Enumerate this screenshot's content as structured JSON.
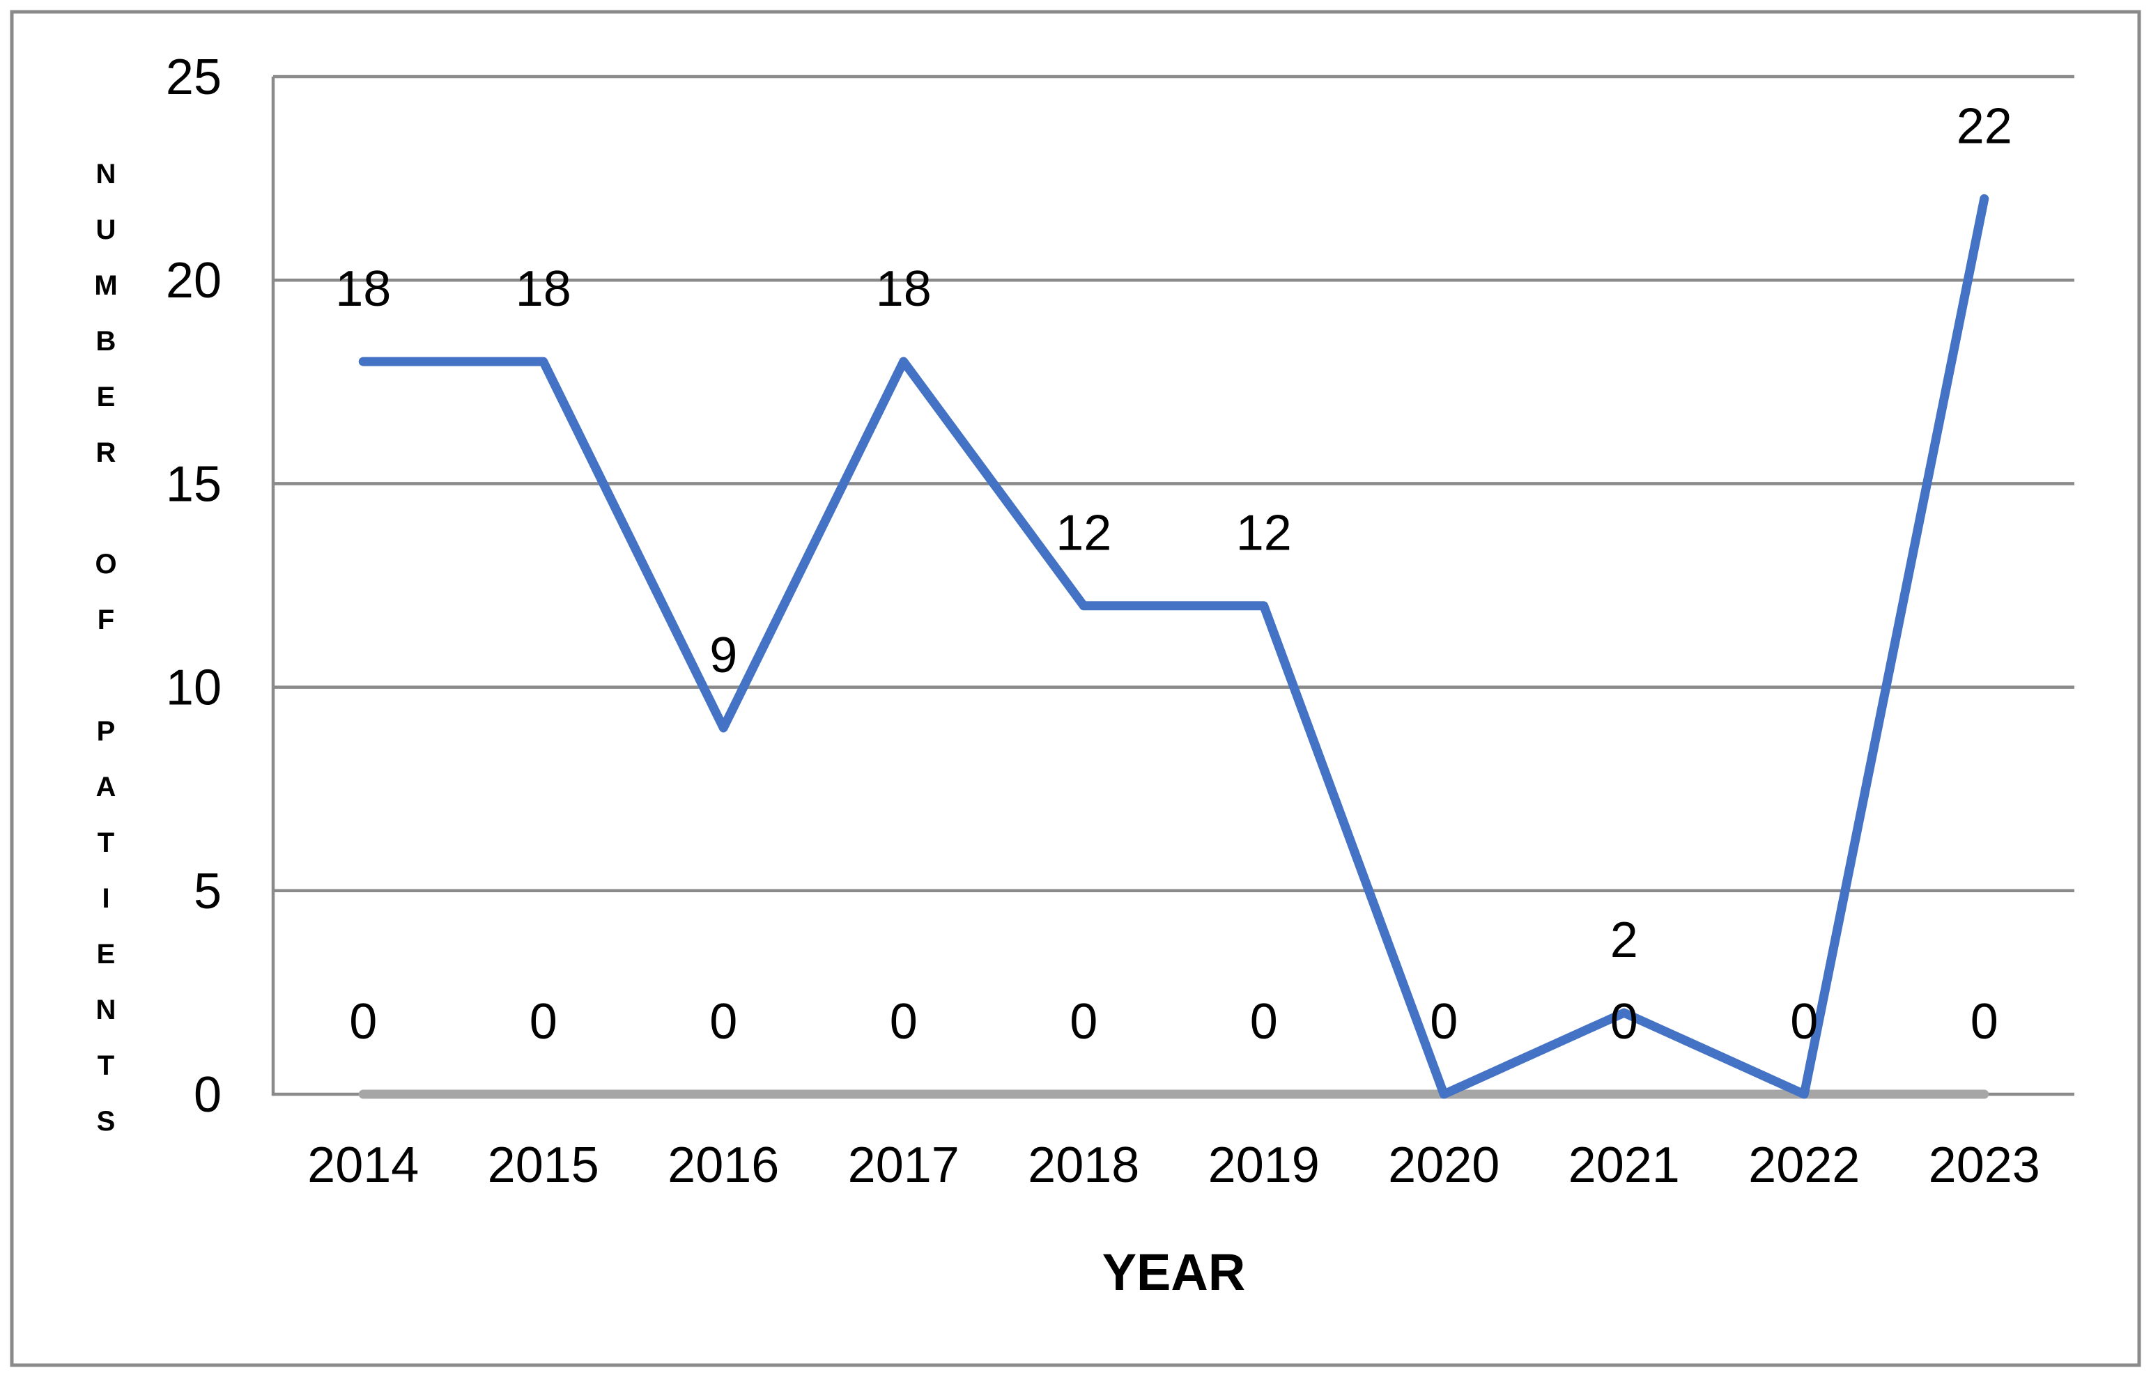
{
  "figure": {
    "background": "#ffffff",
    "border_color": "#8a8a8a"
  },
  "chart_data": {
    "type": "line",
    "title": "",
    "categories": [
      "2014",
      "2015",
      "2016",
      "2017",
      "2018",
      "2019",
      "2020",
      "2021",
      "2022",
      "2023"
    ],
    "series": [
      {
        "name": "number-of-patients",
        "color": "#4472c4",
        "values": [
          18,
          18,
          9,
          18,
          12,
          12,
          0,
          2,
          0,
          22
        ],
        "labels": [
          "18",
          "18",
          "9",
          "18",
          "12",
          "12",
          "",
          "2",
          "",
          "22"
        ]
      },
      {
        "name": "zero-baseline",
        "color": "#a6a6a6",
        "values": [
          0,
          0,
          0,
          0,
          0,
          0,
          0,
          0,
          0,
          0
        ],
        "labels": [
          "0",
          "0",
          "0",
          "0",
          "0",
          "0",
          "0",
          "0",
          "0",
          "0"
        ]
      }
    ],
    "xlabel": "YEAR",
    "ylabel": "NUMBER OF PATIENTS",
    "ylim": [
      0,
      25
    ],
    "yticks": [
      0,
      5,
      10,
      15,
      20,
      25
    ],
    "grid": true,
    "legend_position": "none",
    "gridline_color": "#8a8a8a",
    "axis_color": "#8a8a8a",
    "label_color": "#000000"
  }
}
